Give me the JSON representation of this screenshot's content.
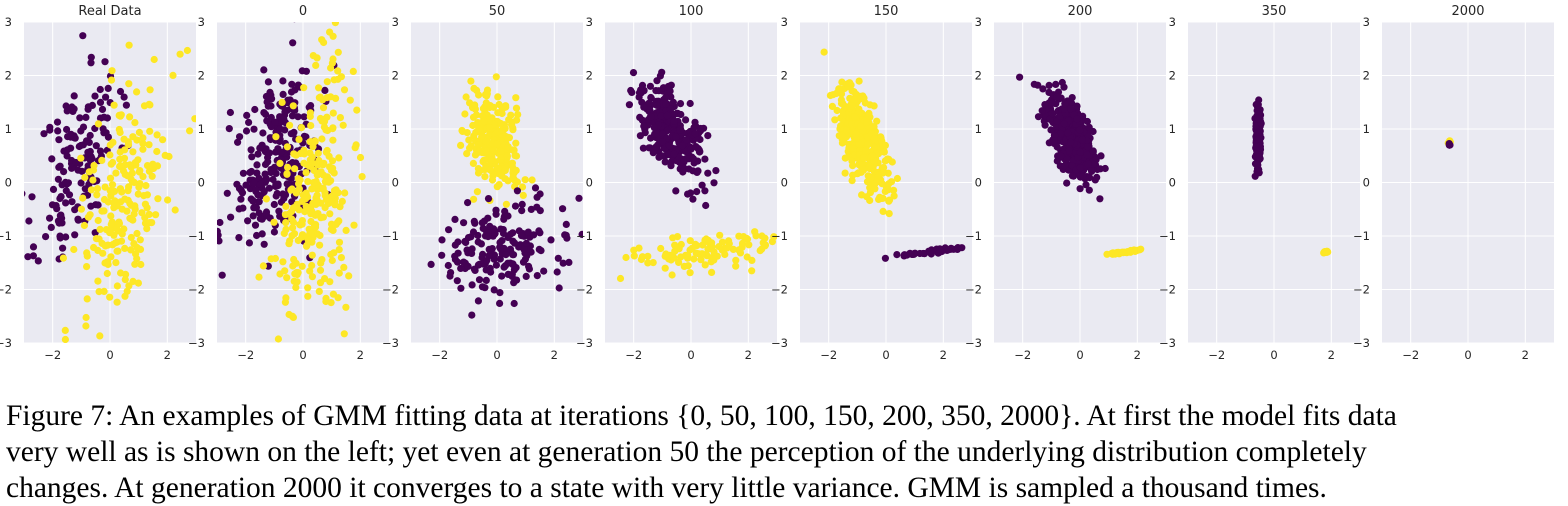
{
  "colors": {
    "purple": "#440154",
    "yellow": "#fde725",
    "axes_bg": "#eaeaf2",
    "grid": "#ffffff"
  },
  "chart_data": [
    {
      "type": "scatter",
      "title": "Real Data",
      "xlim": [
        -3,
        3
      ],
      "ylim": [
        -3,
        3
      ],
      "xticks": [
        -2,
        0,
        2
      ],
      "yticks": [
        -3,
        -2,
        -1,
        0,
        1,
        2,
        3
      ],
      "grid": true,
      "clusters": [
        {
          "color": "purple",
          "n": 150,
          "center": [
            -1.1,
            0.4
          ],
          "sd": [
            0.7,
            0.95
          ],
          "rho": 0.5,
          "seed": 11
        },
        {
          "color": "yellow",
          "n": 220,
          "center": [
            0.5,
            -0.4
          ],
          "sd": [
            0.8,
            1.2
          ],
          "rho": 0.45,
          "seed": 12
        }
      ]
    },
    {
      "type": "scatter",
      "title": "0",
      "xlim": [
        -3,
        3
      ],
      "ylim": [
        -3,
        3
      ],
      "xticks": [
        -2,
        0,
        2
      ],
      "yticks": [
        -3,
        -2,
        -1,
        0,
        1,
        2,
        3
      ],
      "grid": true,
      "clusters": [
        {
          "color": "purple",
          "n": 260,
          "center": [
            -0.9,
            0.4
          ],
          "sd": [
            0.8,
            0.8
          ],
          "rho": 0.4,
          "seed": 21
        },
        {
          "color": "yellow",
          "n": 280,
          "center": [
            0.4,
            -0.3
          ],
          "sd": [
            0.65,
            1.2
          ],
          "rho": 0.3,
          "seed": 22
        }
      ]
    },
    {
      "type": "scatter",
      "title": "50",
      "xlim": [
        -3,
        3
      ],
      "ylim": [
        -3,
        3
      ],
      "xticks": [
        -2,
        0,
        2
      ],
      "yticks": [
        -3,
        -2,
        -1,
        0,
        1,
        2,
        3
      ],
      "grid": true,
      "clusters": [
        {
          "color": "yellow",
          "n": 260,
          "center": [
            -0.15,
            0.75
          ],
          "sd": [
            0.5,
            0.45
          ],
          "rho": -0.3,
          "seed": 31
        },
        {
          "color": "purple",
          "n": 180,
          "center": [
            0.0,
            -1.2
          ],
          "sd": [
            1.3,
            0.45
          ],
          "rho": 0.1,
          "seed": 32
        }
      ]
    },
    {
      "type": "scatter",
      "title": "100",
      "xlim": [
        -3,
        3
      ],
      "ylim": [
        -3,
        3
      ],
      "xticks": [
        -2,
        0,
        2
      ],
      "yticks": [
        -3,
        -2,
        -1,
        0,
        1,
        2,
        3
      ],
      "grid": true,
      "clusters": [
        {
          "color": "purple",
          "n": 320,
          "center": [
            -0.7,
            0.95
          ],
          "sd": [
            0.6,
            0.45
          ],
          "rho": -0.6,
          "seed": 41
        },
        {
          "color": "yellow",
          "n": 110,
          "center": [
            0.4,
            -1.3
          ],
          "sd": [
            1.5,
            0.2
          ],
          "rho": 0.5,
          "seed": 42
        }
      ]
    },
    {
      "type": "scatter",
      "title": "150",
      "xlim": [
        -3,
        3
      ],
      "ylim": [
        -3,
        3
      ],
      "xticks": [
        -2,
        0,
        2
      ],
      "yticks": [
        -3,
        -2,
        -1,
        0,
        1,
        2,
        3
      ],
      "grid": true,
      "clusters": [
        {
          "color": "yellow",
          "n": 380,
          "center": [
            -0.8,
            0.75
          ],
          "sd": [
            0.45,
            0.5
          ],
          "rho": -0.6,
          "seed": 51
        },
        {
          "color": "purple",
          "n": 40,
          "center": [
            1.5,
            -1.3
          ],
          "sd": [
            0.6,
            0.05
          ],
          "rho": 0.9,
          "seed": 52
        }
      ]
    },
    {
      "type": "scatter",
      "title": "200",
      "xlim": [
        -3,
        3
      ],
      "ylim": [
        -3,
        3
      ],
      "xticks": [
        -2,
        0,
        2
      ],
      "yticks": [
        -3,
        -2,
        -1,
        0,
        1,
        2,
        3
      ],
      "grid": true,
      "clusters": [
        {
          "color": "purple",
          "n": 380,
          "center": [
            -0.3,
            0.85
          ],
          "sd": [
            0.45,
            0.4
          ],
          "rho": -0.6,
          "seed": 61
        },
        {
          "color": "yellow",
          "n": 30,
          "center": [
            1.55,
            -1.3
          ],
          "sd": [
            0.25,
            0.02
          ],
          "rho": 0.9,
          "seed": 62
        }
      ]
    },
    {
      "type": "scatter",
      "title": "350",
      "xlim": [
        -3,
        3
      ],
      "ylim": [
        -3,
        3
      ],
      "xticks": [
        -2,
        0,
        2
      ],
      "yticks": [
        -3,
        -2,
        -1,
        0,
        1,
        2,
        3
      ],
      "grid": true,
      "clusters": [
        {
          "color": "purple",
          "n": 200,
          "center": [
            -0.55,
            0.85
          ],
          "sd": [
            0.05,
            0.3
          ],
          "rho": 0.2,
          "seed": 71
        },
        {
          "color": "yellow",
          "n": 12,
          "center": [
            1.8,
            -1.3
          ],
          "sd": [
            0.05,
            0.01
          ],
          "rho": 0.5,
          "seed": 72
        }
      ]
    },
    {
      "type": "scatter",
      "title": "2000",
      "xlim": [
        -3,
        3
      ],
      "ylim": [
        -3,
        3
      ],
      "xticks": [
        -2,
        0,
        2
      ],
      "yticks": [
        -3,
        -2,
        -1,
        0,
        1,
        2,
        3
      ],
      "grid": true,
      "clusters": [
        {
          "color": "yellow",
          "n": 8,
          "center": [
            -0.65,
            0.76
          ],
          "sd": [
            0.02,
            0.02
          ],
          "rho": 0,
          "seed": 81
        },
        {
          "color": "purple",
          "n": 4,
          "center": [
            -0.65,
            0.7
          ],
          "sd": [
            0.01,
            0.01
          ],
          "rho": 0,
          "seed": 82
        }
      ]
    }
  ],
  "caption": {
    "lines": [
      "Figure 7: An examples of GMM fitting data at iterations {0, 50, 100, 150, 200, 350, 2000}. At first the model fits data",
      "very well as is shown on the left; yet even at generation 50 the perception of the underlying distribution completely",
      "changes. At generation 2000 it converges to a state with very little variance. GMM is sampled a thousand times."
    ]
  }
}
